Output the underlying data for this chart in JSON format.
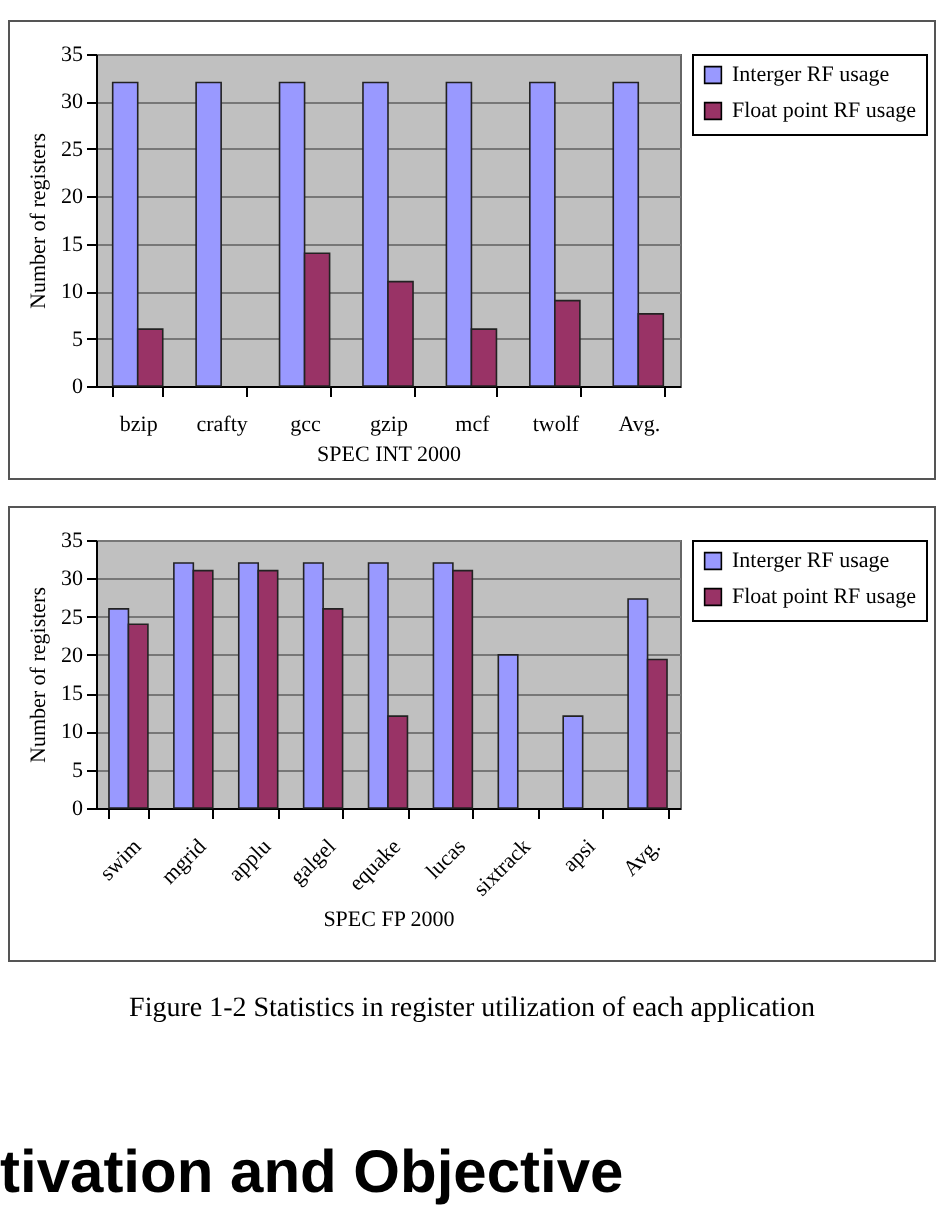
{
  "chart_data": [
    {
      "type": "bar",
      "xlabel": "SPEC INT 2000",
      "ylabel": "Number of registers",
      "categories": [
        "bzip",
        "crafty",
        "gcc",
        "gzip",
        "mcf",
        "twolf",
        "Avg."
      ],
      "series": [
        {
          "name": "Interger RF usage",
          "color": "#9999ff",
          "values": [
            32,
            32,
            32,
            32,
            32,
            32,
            32
          ]
        },
        {
          "name": "Float point RF usage",
          "color": "#993366",
          "values": [
            6,
            null,
            14,
            11,
            6,
            9,
            7.6
          ]
        }
      ],
      "ylim": [
        0,
        35
      ],
      "yticks": [
        0,
        5,
        10,
        15,
        20,
        25,
        30,
        35
      ],
      "grid": "y",
      "legend": "right"
    },
    {
      "type": "bar",
      "xlabel": "SPEC FP 2000",
      "ylabel": "Number of registers",
      "categories": [
        "swim",
        "mgrid",
        "applu",
        "galgel",
        "equake",
        "lucas",
        "sixtrack",
        "apsi",
        "Avg."
      ],
      "series": [
        {
          "name": "Interger RF usage",
          "color": "#9999ff",
          "values": [
            26,
            32,
            32,
            32,
            32,
            32,
            20,
            12,
            27.3
          ]
        },
        {
          "name": "Float point RF usage",
          "color": "#993366",
          "values": [
            24,
            31,
            31,
            26,
            12,
            31,
            null,
            null,
            19.4
          ]
        }
      ],
      "ylim": [
        0,
        35
      ],
      "yticks": [
        0,
        5,
        10,
        15,
        20,
        25,
        30,
        35
      ],
      "grid": "y",
      "legend": "right",
      "annotations": [
        "Figure 1-2 Statistics in register utilization of each application",
        "tivation and Objective"
      ]
    }
  ]
}
